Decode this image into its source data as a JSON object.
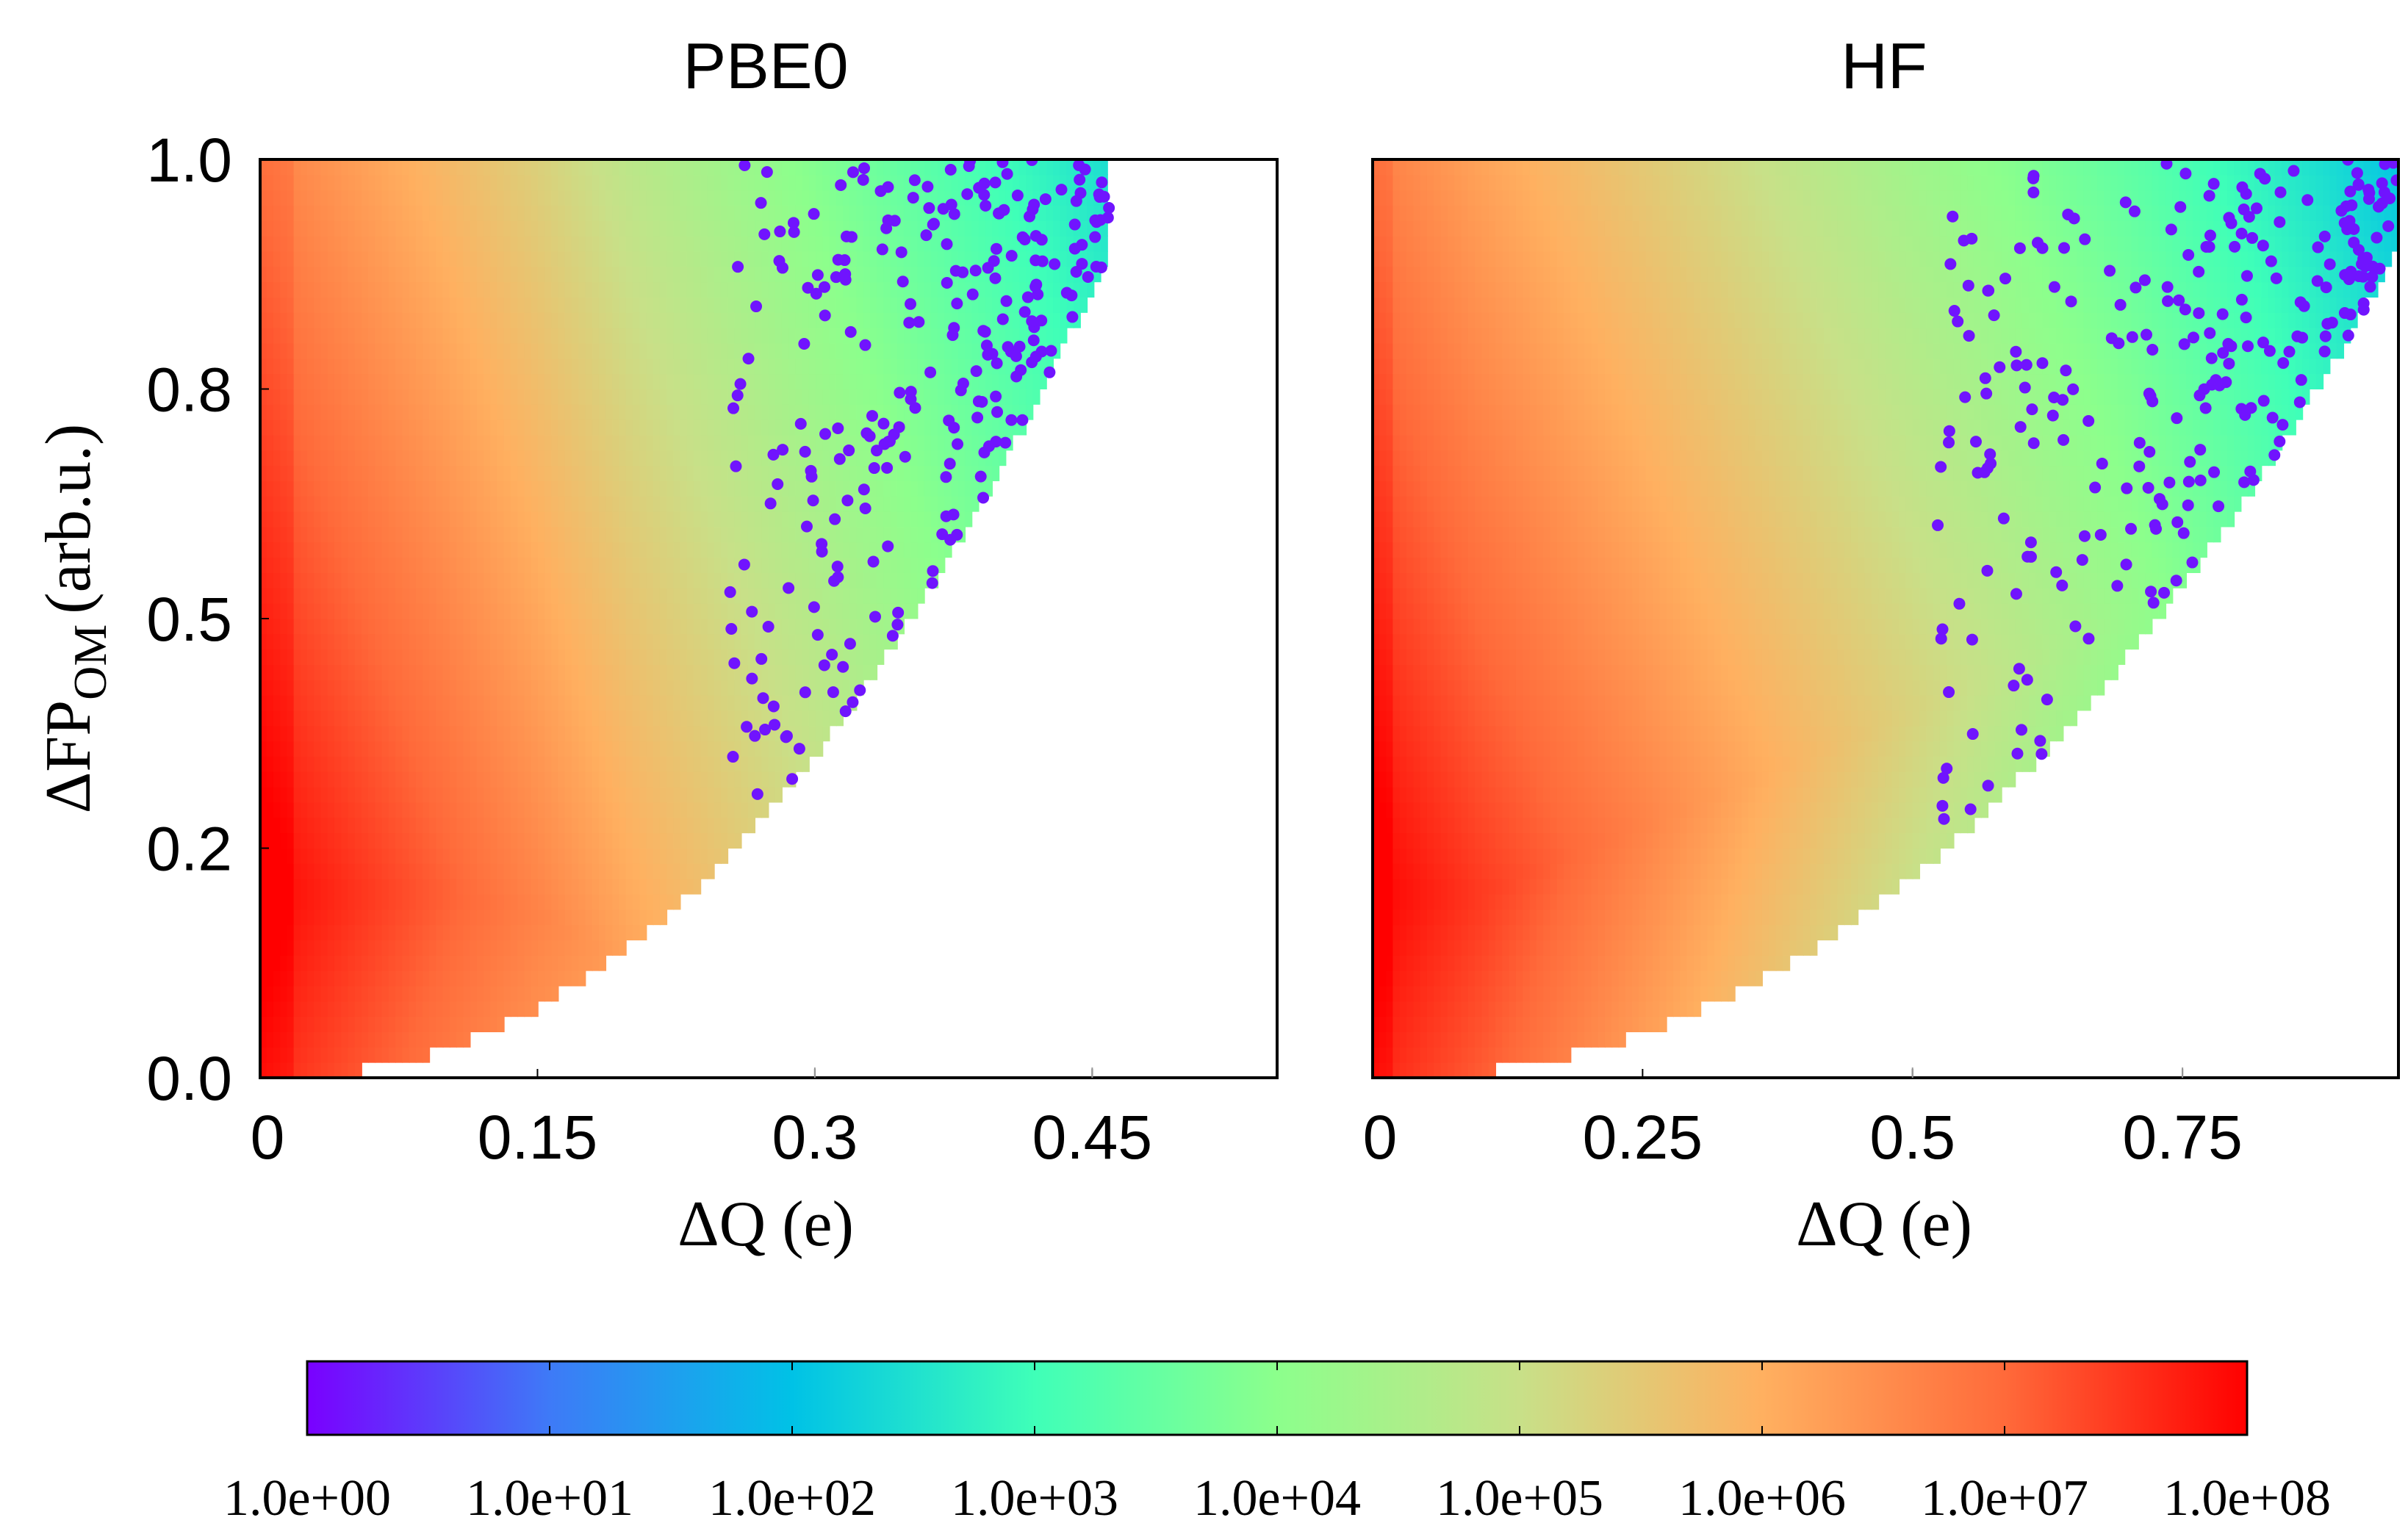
{
  "chart_data": [
    {
      "type": "heatmap",
      "title": "PBE0",
      "xlabel": "ΔQ (e)",
      "ylabel_main": "ΔFP",
      "ylabel_sub": "OM",
      "ylabel_unit": "(arb.u.)",
      "xlim": [
        0,
        0.55
      ],
      "ylim": [
        0,
        1.0
      ],
      "x_ticks": [
        0,
        0.15,
        0.3,
        0.45
      ],
      "x_tick_labels": [
        "0",
        "0.15",
        "0.3",
        "0.45"
      ],
      "y_ticks": [
        0,
        0.25,
        0.5,
        0.75,
        1.0
      ],
      "y_tick_labels": [
        "0.0",
        "0.2",
        "0.5",
        "0.8",
        "1.0"
      ],
      "x_reach_max": 0.46,
      "x_minor_ticks": [
        0.3,
        0.45
      ],
      "density_decay_per_unit_x": 30,
      "density_ridge": [
        [
          0.0,
          0.2
        ],
        [
          0.05,
          0.2
        ],
        [
          0.1,
          0.2
        ],
        [
          0.15,
          0.18
        ],
        [
          0.2,
          0.12
        ]
      ]
    },
    {
      "type": "heatmap",
      "title": "HF",
      "xlabel": "ΔQ (e)",
      "xlim": [
        0,
        0.95
      ],
      "ylim": [
        0,
        1.0
      ],
      "x_ticks": [
        0,
        0.25,
        0.5,
        0.75
      ],
      "x_tick_labels": [
        "0",
        "0.25",
        "0.5",
        "0.75"
      ],
      "y_ticks": [
        0,
        0.25,
        0.5,
        0.75,
        1.0
      ],
      "x_reach_max": 0.95,
      "x_minor_ticks": [
        0.5,
        0.75
      ],
      "density_decay_per_unit_x": 18,
      "density_ridge": [
        [
          0.0,
          0.2
        ],
        [
          0.1,
          0.2
        ],
        [
          0.3,
          0.3
        ],
        [
          0.5,
          0.4
        ],
        [
          0.7,
          0.5
        ]
      ]
    }
  ],
  "colorbar": {
    "scale": "log",
    "range": [
      1,
      100000000
    ],
    "tick_labels": [
      "1.0e+00",
      "1.0e+01",
      "1.0e+02",
      "1.0e+03",
      "1.0e+04",
      "1.0e+05",
      "1.0e+06",
      "1.0e+07",
      "1.0e+08"
    ],
    "colors": [
      "#7a00ff",
      "#3e7af7",
      "#00c2e6",
      "#3fffb8",
      "#8cff8c",
      "#c8e088",
      "#ffb060",
      "#ff6a3a",
      "#ff0000"
    ]
  }
}
